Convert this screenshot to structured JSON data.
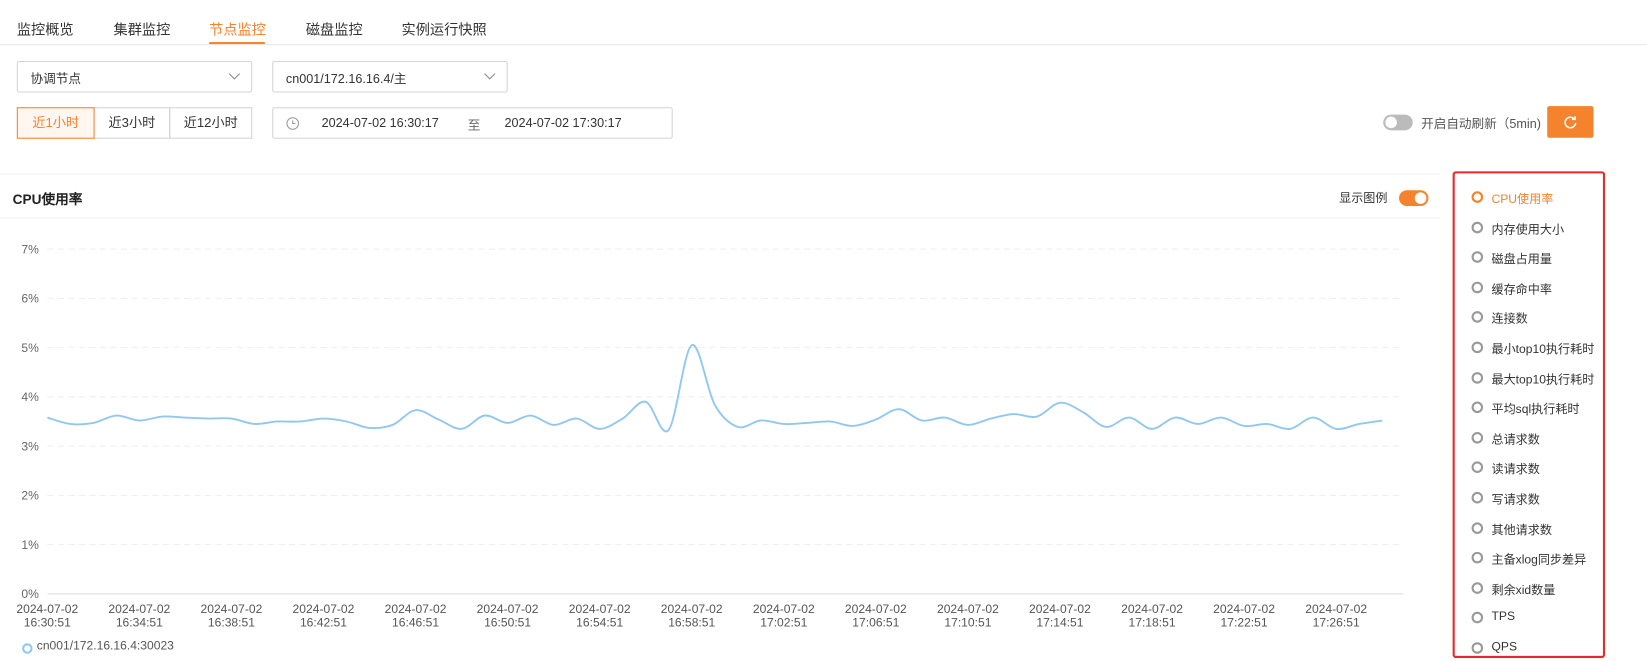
{
  "tabs": [
    "监控概览",
    "集群监控",
    "节点监控",
    "磁盘监控",
    "实例运行快照"
  ],
  "filters": {
    "node_type": "协调节点",
    "node": "cn001/172.16.16.4/主"
  },
  "time_buttons": [
    "近1小时",
    "近3小时",
    "近12小时"
  ],
  "date_range": {
    "start": "2024-07-02 16:30:17",
    "separator": "至",
    "end": "2024-07-02 17:30:17"
  },
  "auto_refresh_label": "开启自动刷新（5min)",
  "legend_toggle_label": "显示图例",
  "metrics": [
    "CPU使用率",
    "内存使用大小",
    "磁盘占用量",
    "缓存命中率",
    "连接数",
    "最小top10执行耗时",
    "最大top10执行耗时",
    "平均sql执行耗时",
    "总请求数",
    "读请求数",
    "写请求数",
    "其他请求数",
    "主备xlog同步差异",
    "剩余xid数量",
    "TPS",
    "QPS"
  ],
  "chart_data": {
    "type": "line",
    "title": "CPU使用率",
    "x": [
      "2024-07-02 16:30:51",
      "2024-07-02 16:31:51",
      "2024-07-02 16:32:51",
      "2024-07-02 16:33:51",
      "2024-07-02 16:34:51",
      "2024-07-02 16:35:51",
      "2024-07-02 16:36:51",
      "2024-07-02 16:37:51",
      "2024-07-02 16:38:51",
      "2024-07-02 16:39:51",
      "2024-07-02 16:40:51",
      "2024-07-02 16:41:51",
      "2024-07-02 16:42:51",
      "2024-07-02 16:43:51",
      "2024-07-02 16:44:51",
      "2024-07-02 16:45:51",
      "2024-07-02 16:46:51",
      "2024-07-02 16:47:51",
      "2024-07-02 16:48:51",
      "2024-07-02 16:49:51",
      "2024-07-02 16:50:51",
      "2024-07-02 16:51:51",
      "2024-07-02 16:52:51",
      "2024-07-02 16:53:51",
      "2024-07-02 16:54:51",
      "2024-07-02 16:55:51",
      "2024-07-02 16:56:51",
      "2024-07-02 16:57:51",
      "2024-07-02 16:58:51",
      "2024-07-02 16:59:51",
      "2024-07-02 17:00:51",
      "2024-07-02 17:01:51",
      "2024-07-02 17:02:51",
      "2024-07-02 17:03:51",
      "2024-07-02 17:04:51",
      "2024-07-02 17:05:51",
      "2024-07-02 17:06:51",
      "2024-07-02 17:07:51",
      "2024-07-02 17:08:51",
      "2024-07-02 17:09:51",
      "2024-07-02 17:10:51",
      "2024-07-02 17:11:51",
      "2024-07-02 17:12:51",
      "2024-07-02 17:13:51",
      "2024-07-02 17:14:51",
      "2024-07-02 17:15:51",
      "2024-07-02 17:16:51",
      "2024-07-02 17:17:51",
      "2024-07-02 17:18:51",
      "2024-07-02 17:19:51",
      "2024-07-02 17:20:51",
      "2024-07-02 17:21:51",
      "2024-07-02 17:22:51",
      "2024-07-02 17:23:51",
      "2024-07-02 17:24:51",
      "2024-07-02 17:25:51",
      "2024-07-02 17:26:51",
      "2024-07-02 17:27:51",
      "2024-07-02 17:28:51"
    ],
    "series": [
      {
        "name": "cn001/172.16.16.4:30023",
        "color": "#92c8f0",
        "values": [
          3.58,
          3.45,
          3.47,
          3.62,
          3.52,
          3.6,
          3.58,
          3.56,
          3.56,
          3.45,
          3.5,
          3.5,
          3.56,
          3.5,
          3.37,
          3.43,
          3.73,
          3.54,
          3.35,
          3.62,
          3.47,
          3.62,
          3.43,
          3.56,
          3.35,
          3.56,
          3.9,
          3.33,
          5.05,
          3.84,
          3.39,
          3.52,
          3.45,
          3.47,
          3.5,
          3.41,
          3.54,
          3.75,
          3.52,
          3.58,
          3.43,
          3.56,
          3.65,
          3.6,
          3.88,
          3.69,
          3.39,
          3.58,
          3.35,
          3.58,
          3.45,
          3.58,
          3.41,
          3.45,
          3.35,
          3.58,
          3.35,
          3.45,
          3.52
        ]
      }
    ],
    "xticks": [
      "2024-07-02 16:30:51",
      "2024-07-02 16:34:51",
      "2024-07-02 16:38:51",
      "2024-07-02 16:42:51",
      "2024-07-02 16:46:51",
      "2024-07-02 16:50:51",
      "2024-07-02 16:54:51",
      "2024-07-02 16:58:51",
      "2024-07-02 17:02:51",
      "2024-07-02 17:06:51",
      "2024-07-02 17:10:51",
      "2024-07-02 17:14:51",
      "2024-07-02 17:18:51",
      "2024-07-02 17:22:51",
      "2024-07-02 17:26:51"
    ],
    "ylim": [
      0,
      7
    ],
    "yticks": [
      {
        "value": 0,
        "label": "0%"
      },
      {
        "value": 1,
        "label": "1%"
      },
      {
        "value": 2,
        "label": "2%"
      },
      {
        "value": 3,
        "label": "3%"
      },
      {
        "value": 4,
        "label": "4%"
      },
      {
        "value": 5,
        "label": "5%"
      },
      {
        "value": 6,
        "label": "6%"
      },
      {
        "value": 7,
        "label": "7%"
      }
    ],
    "grid": true
  }
}
